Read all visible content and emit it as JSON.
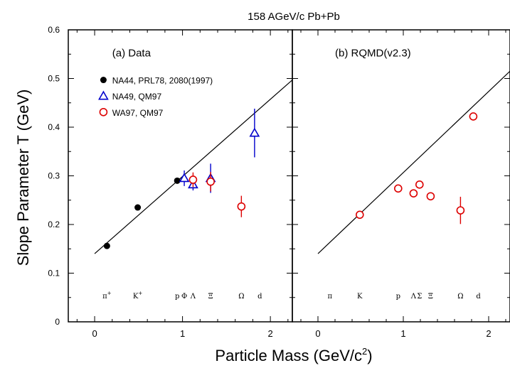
{
  "chart_data": {
    "type": "scatter",
    "title": "158 AGeV/c Pb+Pb",
    "xlabel": "Particle Mass (GeV/c",
    "xlabel_sup": "2",
    "xlabel_tail": ")",
    "ylabel": "Slope Parameter T (GeV)",
    "xlim": [
      -0.3,
      2.25
    ],
    "ylim": [
      0,
      0.6
    ],
    "xticks": [
      "0",
      "1",
      "2"
    ],
    "yticks": [
      "0",
      "0.1",
      "0.2",
      "0.3",
      "0.4",
      "0.5",
      "0.6"
    ],
    "panels": [
      {
        "label": "(a) Data",
        "legend": [
          {
            "name": "NA44, PRL78, 2080(1997)",
            "marker": "filled-circle",
            "color": "#000000"
          },
          {
            "name": "NA49, QM97",
            "marker": "open-triangle",
            "color": "#0000cc"
          },
          {
            "name": "WA97, QM97",
            "marker": "open-circle",
            "color": "#dd0000"
          }
        ],
        "line": {
          "x": [
            0.0,
            2.25
          ],
          "y": [
            0.14,
            0.497
          ]
        },
        "series": [
          {
            "name": "NA44, PRL78, 2080(1997)",
            "marker": "filled-circle",
            "color": "#000000",
            "points": [
              {
                "x": 0.14,
                "y": 0.156
              },
              {
                "x": 0.49,
                "y": 0.235
              },
              {
                "x": 0.94,
                "y": 0.29
              }
            ]
          },
          {
            "name": "NA49, QM97",
            "marker": "open-triangle",
            "color": "#0000cc",
            "points": [
              {
                "x": 1.02,
                "y": 0.295,
                "err": 0.016
              },
              {
                "x": 1.12,
                "y": 0.282,
                "err": 0.012
              },
              {
                "x": 1.32,
                "y": 0.295,
                "err": 0.03
              },
              {
                "x": 1.82,
                "y": 0.388,
                "err": 0.05
              }
            ]
          },
          {
            "name": "WA97, QM97",
            "marker": "open-circle",
            "color": "#dd0000",
            "points": [
              {
                "x": 1.12,
                "y": 0.292,
                "err": 0.015
              },
              {
                "x": 1.32,
                "y": 0.288,
                "err": 0.02
              },
              {
                "x": 1.67,
                "y": 0.237,
                "err": 0.022
              }
            ]
          }
        ],
        "particles": [
          {
            "x": 0.14,
            "label": "π",
            "sup": "+"
          },
          {
            "x": 0.49,
            "label": "K",
            "sup": "+"
          },
          {
            "x": 0.94,
            "label": "p",
            "sup": ""
          },
          {
            "x": 1.02,
            "label": "Φ",
            "sup": ""
          },
          {
            "x": 1.12,
            "label": "Λ",
            "sup": ""
          },
          {
            "x": 1.32,
            "label": "Ξ",
            "sup": ""
          },
          {
            "x": 1.67,
            "label": "Ω",
            "sup": ""
          },
          {
            "x": 1.88,
            "label": "d",
            "sup": ""
          }
        ]
      },
      {
        "label": "(b) RQMD(v2.3)",
        "line": {
          "x": [
            0.0,
            2.25
          ],
          "y": [
            0.14,
            0.515
          ]
        },
        "series": [
          {
            "name": "RQMD",
            "marker": "open-circle",
            "color": "#dd0000",
            "points": [
              {
                "x": 0.49,
                "y": 0.22
              },
              {
                "x": 0.94,
                "y": 0.274
              },
              {
                "x": 1.12,
                "y": 0.264
              },
              {
                "x": 1.19,
                "y": 0.282
              },
              {
                "x": 1.32,
                "y": 0.258
              },
              {
                "x": 1.67,
                "y": 0.229,
                "err": 0.028
              },
              {
                "x": 1.82,
                "y": 0.422
              }
            ]
          }
        ],
        "particles": [
          {
            "x": 0.14,
            "label": "π",
            "sup": ""
          },
          {
            "x": 0.49,
            "label": "K",
            "sup": ""
          },
          {
            "x": 0.94,
            "label": "p",
            "sup": ""
          },
          {
            "x": 1.12,
            "label": "Λ",
            "sup": ""
          },
          {
            "x": 1.19,
            "label": "Σ",
            "sup": ""
          },
          {
            "x": 1.32,
            "label": "Ξ",
            "sup": ""
          },
          {
            "x": 1.67,
            "label": "Ω",
            "sup": ""
          },
          {
            "x": 1.88,
            "label": "d",
            "sup": ""
          }
        ]
      }
    ]
  }
}
